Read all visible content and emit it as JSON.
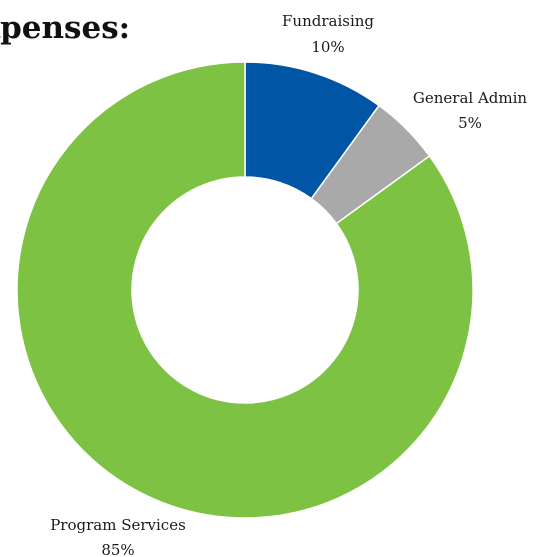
{
  "chart_data": {
    "type": "pie",
    "title": "Expenses:",
    "categories": [
      "Fundraising",
      "General Admin",
      "Program Services"
    ],
    "values": [
      10,
      5,
      85
    ],
    "value_labels": [
      "10%",
      "5%",
      "85%"
    ],
    "colors": [
      "#0056a4",
      "#a9a9a9",
      "#7dc242"
    ],
    "unit": "%",
    "donut": true,
    "legend": "none",
    "labels_position": "outside"
  }
}
